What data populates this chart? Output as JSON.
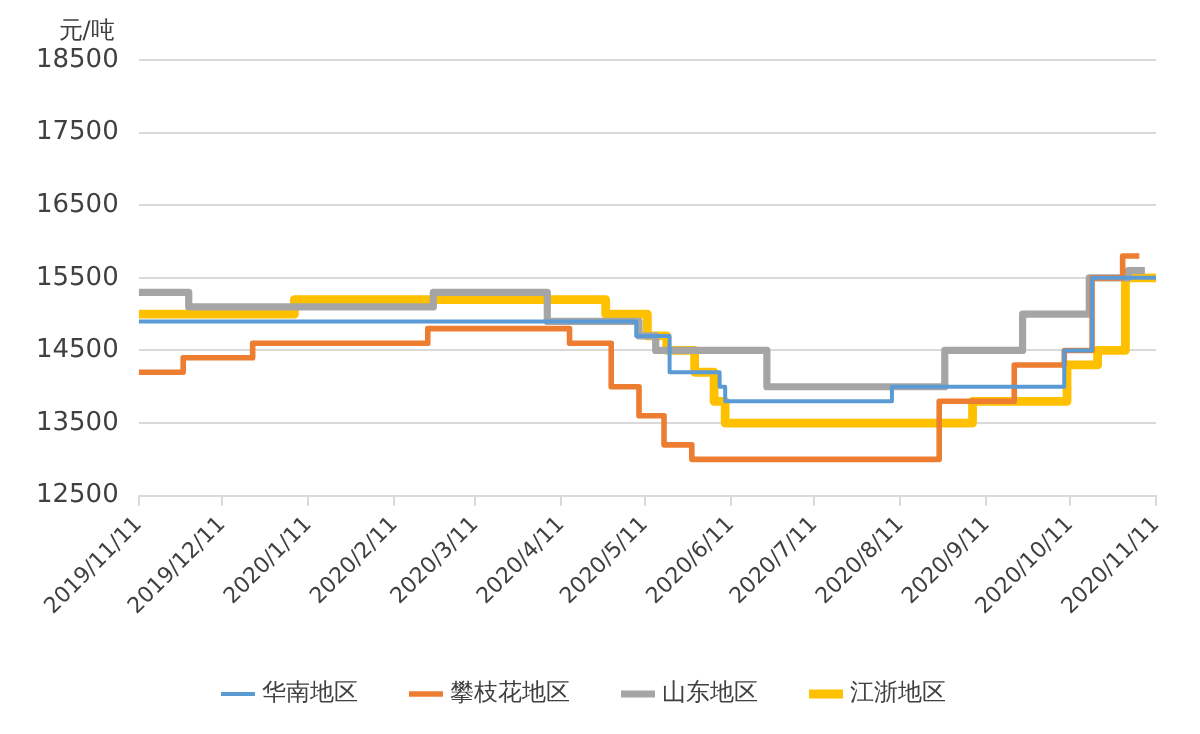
{
  "chart_data": {
    "type": "step",
    "ylabel": "元/吨",
    "xlim": [
      "2019-11-11",
      "2020-11-11"
    ],
    "xticks": [
      {
        "value": "2019-11-11",
        "label": "2019/11/11"
      },
      {
        "value": "2019-12-11",
        "label": "2019/12/11"
      },
      {
        "value": "2020-01-11",
        "label": "2020/1/11"
      },
      {
        "value": "2020-02-11",
        "label": "2020/2/11"
      },
      {
        "value": "2020-03-11",
        "label": "2020/3/11"
      },
      {
        "value": "2020-04-11",
        "label": "2020/4/11"
      },
      {
        "value": "2020-05-11",
        "label": "2020/5/11"
      },
      {
        "value": "2020-06-11",
        "label": "2020/6/11"
      },
      {
        "value": "2020-07-11",
        "label": "2020/7/11"
      },
      {
        "value": "2020-08-11",
        "label": "2020/8/11"
      },
      {
        "value": "2020-09-11",
        "label": "2020/9/11"
      },
      {
        "value": "2020-10-11",
        "label": "2020/10/11"
      },
      {
        "value": "2020-11-11",
        "label": "2020/11/11"
      }
    ],
    "ylim": [
      12500,
      18500
    ],
    "yticks": [
      12500,
      13500,
      14500,
      15500,
      16500,
      17500,
      18500
    ],
    "grid": "y",
    "legend": "bottom",
    "series": [
      {
        "name": "华南地区",
        "color": "#5b9bd5",
        "x": [
          "2019-11-11",
          "2020-05-08",
          "2020-05-20",
          "2020-06-07",
          "2020-06-09",
          "2020-08-08",
          "2020-10-09",
          "2020-10-19",
          "2020-11-11"
        ],
        "values": [
          14900,
          14700,
          14200,
          14000,
          13800,
          14000,
          14500,
          15500,
          15500
        ]
      },
      {
        "name": "攀枝花地区",
        "color": "#ed7d31",
        "x": [
          "2019-11-11",
          "2019-11-27",
          "2019-12-22",
          "2020-02-23",
          "2020-04-14",
          "2020-04-29",
          "2020-05-09",
          "2020-05-18",
          "2020-05-28",
          "2020-08-25",
          "2020-09-21",
          "2020-10-09",
          "2020-10-19",
          "2020-10-30",
          "2020-11-05"
        ],
        "values": [
          14200,
          14400,
          14600,
          14800,
          14600,
          14000,
          13600,
          13200,
          13000,
          13800,
          14300,
          14500,
          15500,
          15800,
          15800
        ]
      },
      {
        "name": "山东地区",
        "color": "#a5a5a5",
        "x": [
          "2019-11-11",
          "2019-11-29",
          "2020-02-25",
          "2020-04-06",
          "2020-05-09",
          "2020-05-15",
          "2020-06-24",
          "2020-08-27",
          "2020-09-24",
          "2020-10-18",
          "2020-11-01",
          "2020-11-07"
        ],
        "values": [
          15300,
          15100,
          15300,
          14900,
          14700,
          14500,
          14000,
          14500,
          15000,
          15500,
          15600,
          15600
        ]
      },
      {
        "name": "江浙地区",
        "color": "#ffc000",
        "x": [
          "2019-11-11",
          "2020-01-06",
          "2020-04-27",
          "2020-05-12",
          "2020-05-19",
          "2020-05-29",
          "2020-06-05",
          "2020-06-09",
          "2020-09-06",
          "2020-10-10",
          "2020-10-21",
          "2020-10-31",
          "2020-11-11"
        ],
        "values": [
          15000,
          15200,
          15000,
          14700,
          14500,
          14200,
          13800,
          13500,
          13800,
          14300,
          14500,
          15500,
          15500
        ]
      }
    ]
  }
}
